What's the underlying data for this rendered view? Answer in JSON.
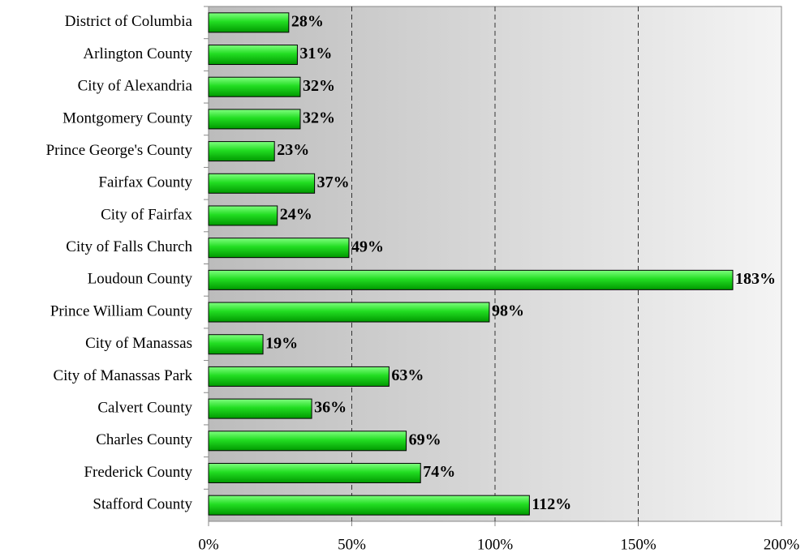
{
  "chart_data": {
    "type": "bar",
    "orientation": "horizontal",
    "categories": [
      "District of Columbia",
      "Arlington County",
      "City of Alexandria",
      "Montgomery County",
      "Prince George's County",
      "Fairfax County",
      "City of Fairfax",
      "City of Falls Church",
      "Loudoun County",
      "Prince William County",
      "City of Manassas",
      "City of Manassas Park",
      "Calvert County",
      "Charles County",
      "Frederick County",
      "Stafford County"
    ],
    "values": [
      28,
      31,
      32,
      32,
      23,
      37,
      24,
      49,
      183,
      98,
      19,
      63,
      36,
      69,
      74,
      112
    ],
    "value_labels": [
      "28%",
      "31%",
      "32%",
      "32%",
      "23%",
      "37%",
      "24%",
      "49%",
      "183%",
      "98%",
      "19%",
      "63%",
      "36%",
      "69%",
      "74%",
      "112%"
    ],
    "color": "#22cc22",
    "xlim": [
      0,
      200
    ],
    "xticks": [
      {
        "value": 0,
        "label": "0%"
      },
      {
        "value": 50,
        "label": "50%"
      },
      {
        "value": 100,
        "label": "100%"
      },
      {
        "value": 150,
        "label": "150%"
      },
      {
        "value": 200,
        "label": "200%"
      }
    ],
    "grid": true
  }
}
